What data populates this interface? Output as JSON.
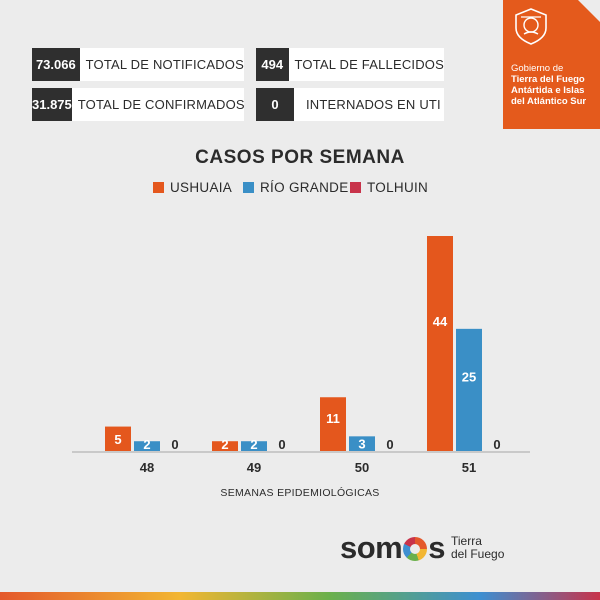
{
  "stats": [
    {
      "value": "73.066",
      "label": "TOTAL DE NOTIFICADOS"
    },
    {
      "value": "494",
      "label": "TOTAL DE FALLECIDOS"
    },
    {
      "value": "31.875",
      "label": "TOTAL DE CONFIRMADOS"
    },
    {
      "value": "0",
      "label": "INTERNADOS EN UTI"
    }
  ],
  "government": {
    "line1": "Gobierno de",
    "line2": "Tierra del Fuego",
    "line3": "Antártida e Islas",
    "line4": "del Atlántico Sur"
  },
  "brand": {
    "word_start": "som",
    "word_end": "s",
    "sub1": "Tierra",
    "sub2": "del Fuego"
  },
  "chart_data": {
    "type": "bar",
    "title": "CASOS POR SEMANA",
    "xlabel": "SEMANAS EPIDEMIOLÓGICAS",
    "ylabel": "",
    "categories": [
      "48",
      "49",
      "50",
      "51"
    ],
    "series": [
      {
        "name": "USHUAIA",
        "color": "#e4571d",
        "values": [
          5,
          2,
          11,
          44
        ]
      },
      {
        "name": "RÍO GRANDE",
        "color": "#3a8fc6",
        "values": [
          2,
          2,
          3,
          25
        ]
      },
      {
        "name": "TOLHUIN",
        "color": "#c8334a",
        "values": [
          0,
          0,
          0,
          0
        ]
      }
    ],
    "ylim": [
      0,
      44
    ],
    "grid": false,
    "legend": "top-center"
  }
}
